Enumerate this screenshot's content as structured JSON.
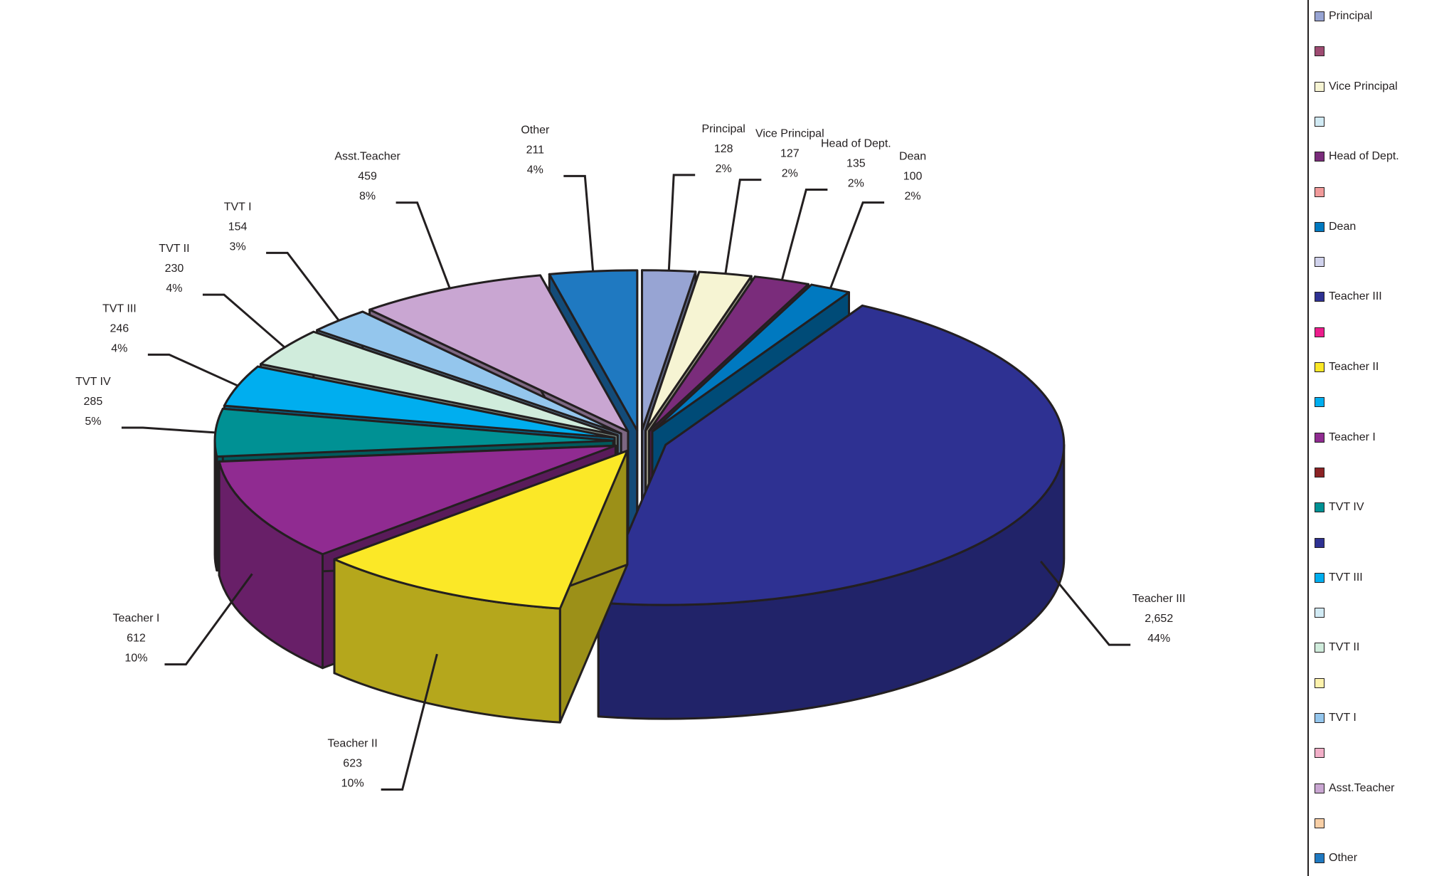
{
  "chart_data": {
    "type": "pie",
    "title": "",
    "slices": [
      {
        "label": "Principal",
        "count": "128",
        "percent": "2%",
        "value": 128,
        "color": "#97a4d3"
      },
      {
        "label": "Vice Principal",
        "count": "127",
        "percent": "2%",
        "value": 127,
        "color": "#f6f4d3"
      },
      {
        "label": "Head of Dept.",
        "count": "135",
        "percent": "2%",
        "value": 135,
        "color": "#7a2c7b"
      },
      {
        "label": "Dean",
        "count": "100",
        "percent": "2%",
        "value": 100,
        "color": "#0079c0"
      },
      {
        "label": "Teacher III",
        "count": "2,652",
        "percent": "44%",
        "value": 2652,
        "color": "#2e3192"
      },
      {
        "label": "Teacher II",
        "count": "623",
        "percent": "10%",
        "value": 623,
        "color": "#fbe827"
      },
      {
        "label": "Teacher I",
        "count": "612",
        "percent": "10%",
        "value": 612,
        "color": "#902b91"
      },
      {
        "label": "TVT IV",
        "count": "285",
        "percent": "5%",
        "value": 285,
        "color": "#009194"
      },
      {
        "label": "TVT III",
        "count": "246",
        "percent": "4%",
        "value": 246,
        "color": "#00aeef"
      },
      {
        "label": "TVT II",
        "count": "230",
        "percent": "4%",
        "value": 230,
        "color": "#d0ecdc"
      },
      {
        "label": "TVT I",
        "count": "154",
        "percent": "3%",
        "value": 154,
        "color": "#94c6ed"
      },
      {
        "label": "Asst.Teacher",
        "count": "459",
        "percent": "8%",
        "value": 459,
        "color": "#c9a6d2"
      },
      {
        "label": "Other",
        "count": "211",
        "percent": "4%",
        "value": 211,
        "color": "#1f79c1"
      }
    ],
    "legend_position": "right",
    "legend": [
      {
        "label": "Principal",
        "color": "#97a4d3"
      },
      {
        "label": "",
        "color": "#9e4b72"
      },
      {
        "label": "Vice Principal",
        "color": "#f6f4d3"
      },
      {
        "label": "",
        "color": "#d1eaf4"
      },
      {
        "label": "Head of Dept.",
        "color": "#7a2c7b"
      },
      {
        "label": "",
        "color": "#f19a9a"
      },
      {
        "label": "Dean",
        "color": "#0079c0"
      },
      {
        "label": "",
        "color": "#d0d2ec"
      },
      {
        "label": "Teacher III",
        "color": "#2e3192"
      },
      {
        "label": "",
        "color": "#ec1c8c"
      },
      {
        "label": "Teacher II",
        "color": "#fbe827"
      },
      {
        "label": "",
        "color": "#00aeef"
      },
      {
        "label": "Teacher I",
        "color": "#902b91"
      },
      {
        "label": "",
        "color": "#8b2224"
      },
      {
        "label": "TVT IV",
        "color": "#009194"
      },
      {
        "label": "",
        "color": "#2e3192"
      },
      {
        "label": "TVT III",
        "color": "#00aeef"
      },
      {
        "label": "",
        "color": "#d1eaf4"
      },
      {
        "label": "TVT II",
        "color": "#d0ecdc"
      },
      {
        "label": "",
        "color": "#fdf2ac"
      },
      {
        "label": "TVT I",
        "color": "#94c6ed"
      },
      {
        "label": "",
        "color": "#f2afc8"
      },
      {
        "label": "Asst.Teacher",
        "color": "#c9a6d2"
      },
      {
        "label": "",
        "color": "#f8cfa6"
      },
      {
        "label": "Other",
        "color": "#1f79c1"
      }
    ]
  }
}
